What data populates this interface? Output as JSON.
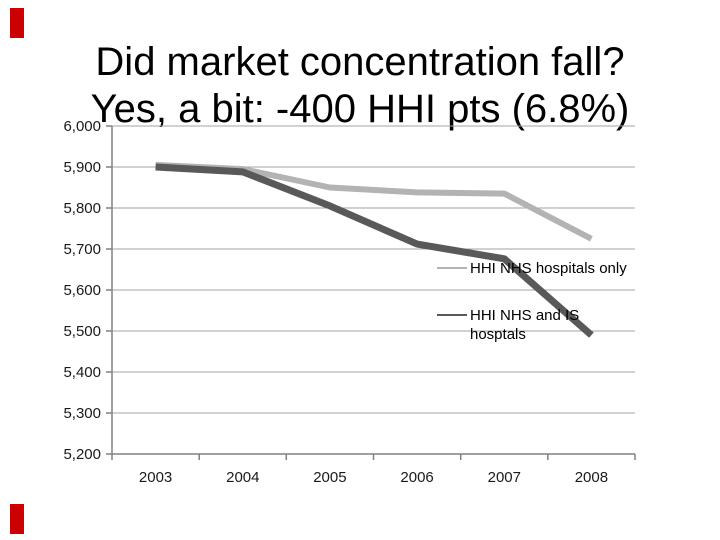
{
  "slide": {
    "title": {
      "line1": "Did market concentration fall?",
      "line2": "Yes, a bit: -400 HHI pts (6.8%)"
    },
    "accent_color": "#cc0000",
    "background_color": "#ffffff"
  },
  "chart_data": {
    "type": "line",
    "title": "",
    "xlabel": "",
    "ylabel": "",
    "categories": [
      "2003",
      "2004",
      "2005",
      "2006",
      "2007",
      "2008"
    ],
    "series": [
      {
        "name": "HHI NHS hospitals only",
        "color": "#b3b3b3",
        "stroke_width": 6,
        "values": [
          5905,
          5895,
          5850,
          5838,
          5835,
          5725
        ]
      },
      {
        "name": "HHI NHS and IS hosptals",
        "color": "#595959",
        "stroke_width": 7,
        "values": [
          5900,
          5888,
          5805,
          5712,
          5676,
          5490
        ]
      }
    ],
    "ylim": [
      5200,
      6000
    ],
    "ytick_step": 100,
    "ytick_labels": [
      "5,200",
      "5,300",
      "5,400",
      "5,500",
      "5,600",
      "5,700",
      "5,800",
      "5,900",
      "6,000"
    ],
    "grid": true,
    "gridline_color": "#a3a3a3",
    "axis_color": "#808080",
    "tick_label_color": "#1a1a1a",
    "legend": {
      "position": "inside-right",
      "entries": [
        {
          "line1": "HHI NHS hospitals only",
          "line2": "",
          "color": "#b3b3b3"
        },
        {
          "line1": "HHI NHS and IS",
          "line2": "hosptals",
          "color": "#595959"
        }
      ]
    }
  }
}
